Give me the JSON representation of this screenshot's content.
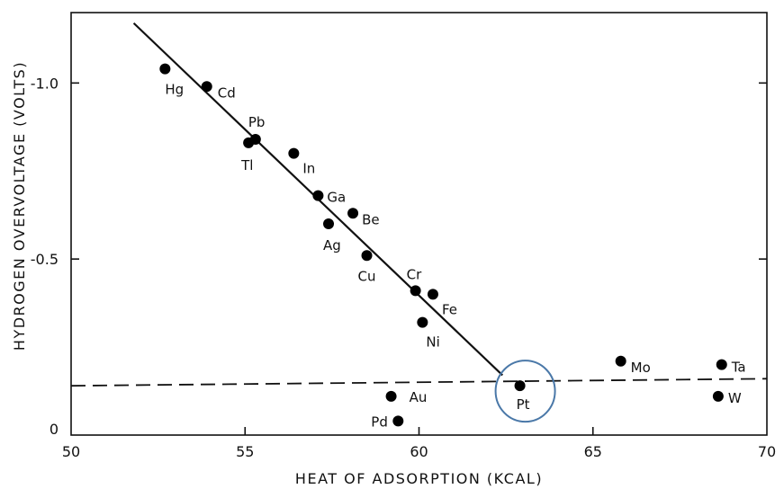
{
  "chart_data": {
    "type": "scatter",
    "title": "",
    "xlabel": "HEAT OF ADSORPTION (KCAL)",
    "ylabel": "HYDROGEN OVERVOLTAGE (VOLTS)",
    "xlim": [
      50,
      70
    ],
    "ylim": [
      0,
      -1.2
    ],
    "x_ticks": [
      50,
      55,
      60,
      65,
      70
    ],
    "x_tick_labels": [
      "50",
      "55",
      "60",
      "65",
      "70"
    ],
    "y_ticks": [
      -1.0,
      -0.5,
      0
    ],
    "y_tick_labels": [
      "-1.0",
      "-0.5",
      "0"
    ],
    "grid": false,
    "points": [
      {
        "label": "Hg",
        "x": 52.7,
        "y": -1.04
      },
      {
        "label": "Cd",
        "x": 53.9,
        "y": -0.99
      },
      {
        "label": "Pb",
        "x": 55.3,
        "y": -0.84
      },
      {
        "label": "Tl",
        "x": 55.1,
        "y": -0.83
      },
      {
        "label": "In",
        "x": 56.4,
        "y": -0.8
      },
      {
        "label": "Ga",
        "x": 57.1,
        "y": -0.68
      },
      {
        "label": "Be",
        "x": 58.1,
        "y": -0.63
      },
      {
        "label": "Ag",
        "x": 57.4,
        "y": -0.6
      },
      {
        "label": "Cu",
        "x": 58.5,
        "y": -0.51
      },
      {
        "label": "Cr",
        "x": 59.9,
        "y": -0.41
      },
      {
        "label": "Fe",
        "x": 60.4,
        "y": -0.4
      },
      {
        "label": "Ni",
        "x": 60.1,
        "y": -0.32
      },
      {
        "label": "Mo",
        "x": 65.8,
        "y": -0.21
      },
      {
        "label": "Ta",
        "x": 68.7,
        "y": -0.2
      },
      {
        "label": "Pt",
        "x": 62.9,
        "y": -0.14
      },
      {
        "label": "Au",
        "x": 59.2,
        "y": -0.11
      },
      {
        "label": "W",
        "x": 68.6,
        "y": -0.11
      },
      {
        "label": "Pd",
        "x": 59.4,
        "y": -0.04
      }
    ],
    "trend_line": {
      "x": [
        51.8,
        62.4
      ],
      "y": [
        -1.17,
        -0.17
      ]
    },
    "reference_line": {
      "x": [
        50,
        70
      ],
      "y": [
        -0.14,
        -0.16
      ]
    },
    "highlight": {
      "label": "Pt",
      "x": 62.9,
      "y": -0.14,
      "color": "#4a78a8"
    }
  }
}
